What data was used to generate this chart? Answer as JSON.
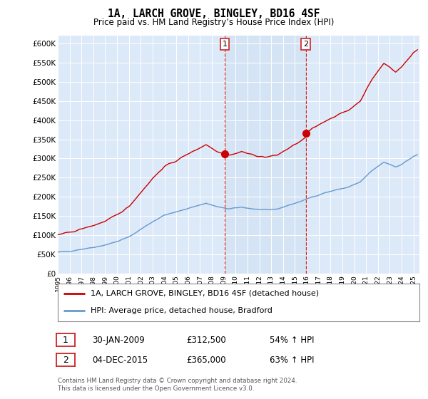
{
  "title": "1A, LARCH GROVE, BINGLEY, BD16 4SF",
  "subtitle": "Price paid vs. HM Land Registry’s House Price Index (HPI)",
  "legend_label_red": "1A, LARCH GROVE, BINGLEY, BD16 4SF (detached house)",
  "legend_label_blue": "HPI: Average price, detached house, Bradford",
  "footer": "Contains HM Land Registry data © Crown copyright and database right 2024.\nThis data is licensed under the Open Government Licence v3.0.",
  "transaction1_label": "1",
  "transaction1_date": "30-JAN-2009",
  "transaction1_price": "£312,500",
  "transaction1_hpi": "54% ↑ HPI",
  "transaction1_x": 2009.08,
  "transaction1_y": 312500,
  "transaction2_label": "2",
  "transaction2_date": "04-DEC-2015",
  "transaction2_price": "£365,000",
  "transaction2_hpi": "63% ↑ HPI",
  "transaction2_x": 2015.92,
  "transaction2_y": 365000,
  "ylim": [
    0,
    620000
  ],
  "xlim_start": 1995.0,
  "xlim_end": 2025.5,
  "yticks": [
    0,
    50000,
    100000,
    150000,
    200000,
    250000,
    300000,
    350000,
    400000,
    450000,
    500000,
    550000,
    600000
  ],
  "ytick_labels": [
    "£0",
    "£50K",
    "£100K",
    "£150K",
    "£200K",
    "£250K",
    "£300K",
    "£350K",
    "£400K",
    "£450K",
    "£500K",
    "£550K",
    "£600K"
  ],
  "background_color": "#dce9f8",
  "shade_color": "#c8dcf0",
  "red_color": "#cc0000",
  "blue_color": "#6699cc",
  "marker_box_color": "#cc2222",
  "grid_color": "#ffffff",
  "fig_bg": "#ffffff"
}
